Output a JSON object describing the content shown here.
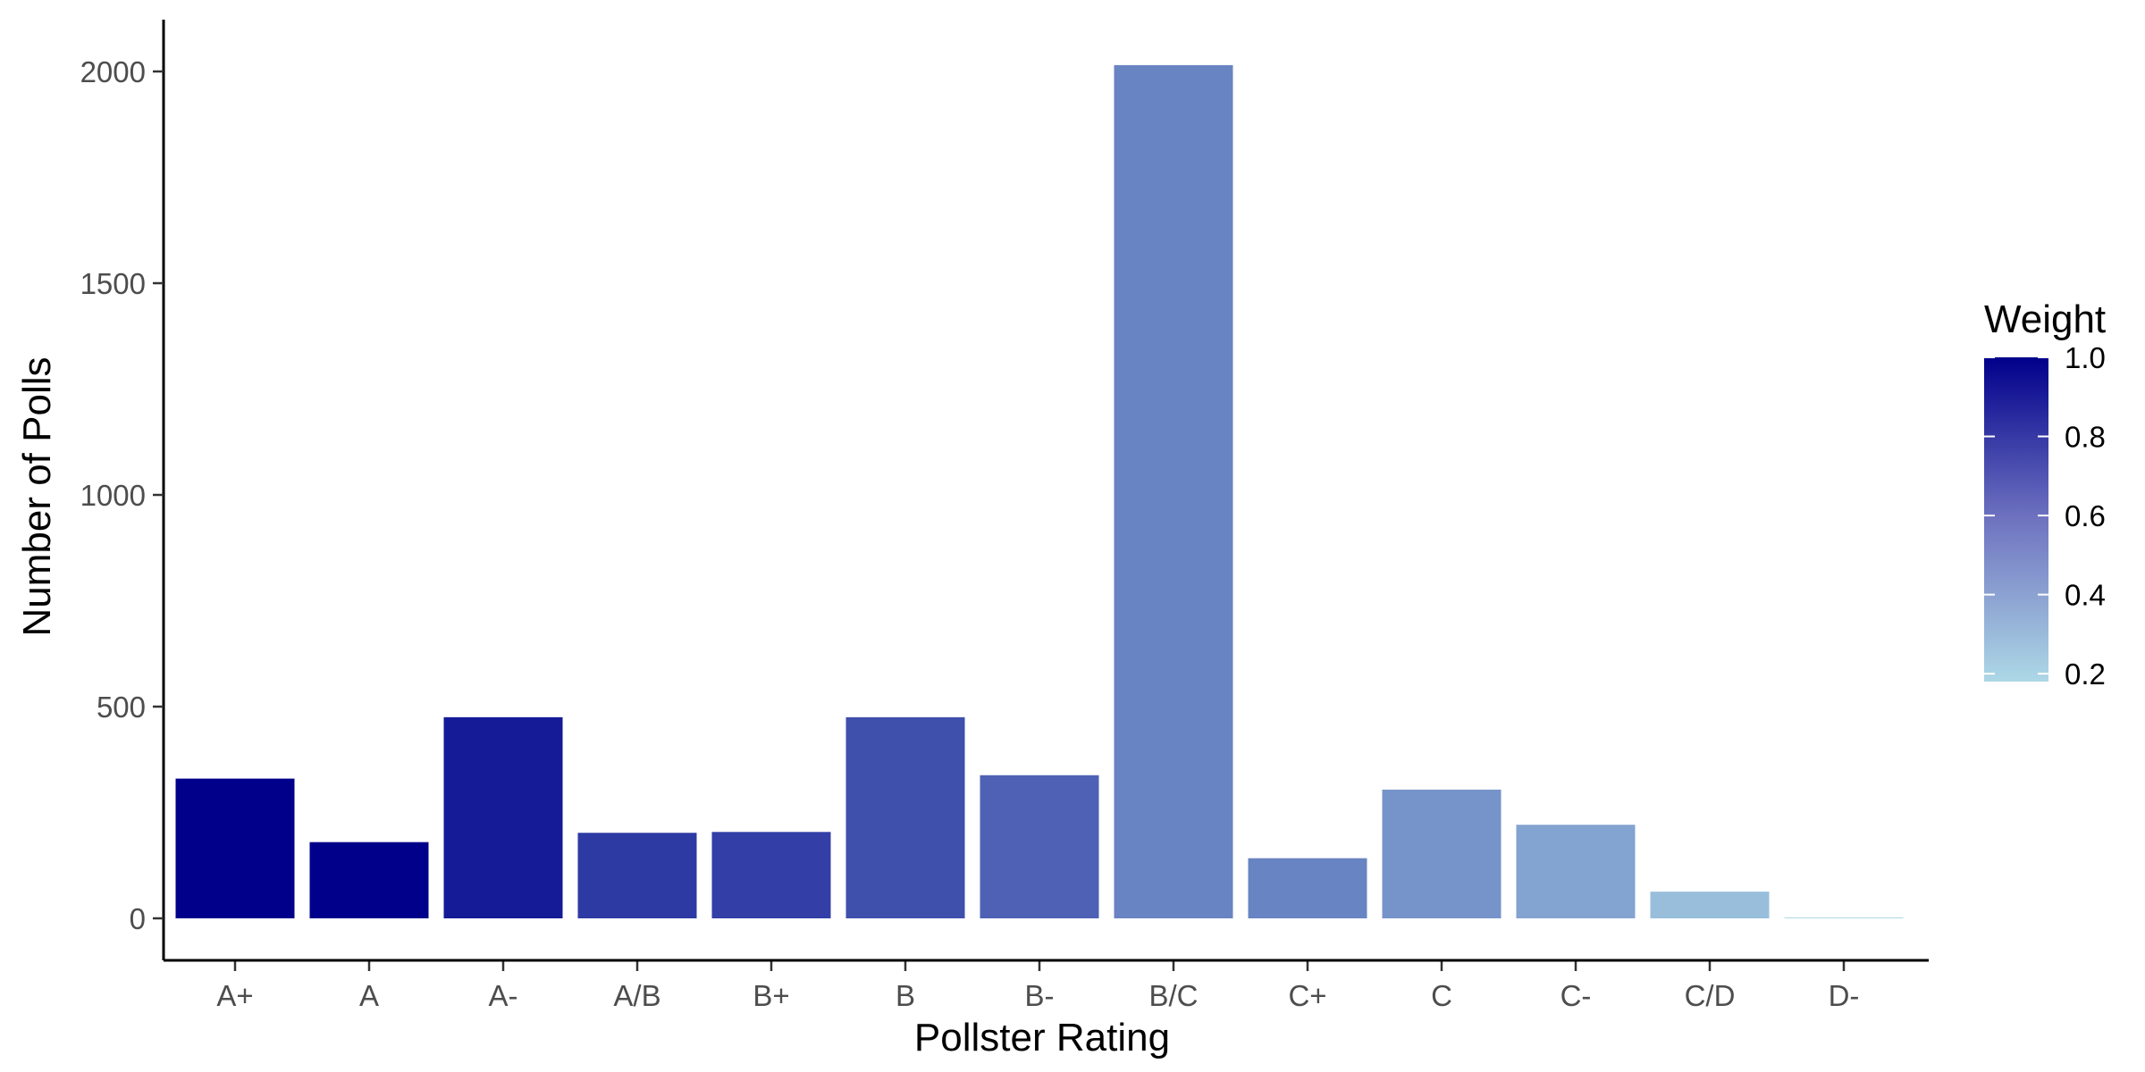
{
  "chart_data": {
    "type": "bar",
    "categories": [
      "A+",
      "A",
      "A-",
      "A/B",
      "B+",
      "B",
      "B-",
      "B/C",
      "C+",
      "C",
      "C-",
      "C/D",
      "D-"
    ],
    "values": [
      330,
      180,
      475,
      202,
      204,
      475,
      338,
      2015,
      142,
      304,
      221,
      63,
      2
    ],
    "weights": [
      1.0,
      1.0,
      0.9,
      0.78,
      0.76,
      0.7,
      0.63,
      0.5,
      0.5,
      0.44,
      0.38,
      0.28,
      0.15
    ],
    "xlabel": "Pollster Rating",
    "ylabel": "Number of Polls",
    "ylim": [
      0,
      2100
    ],
    "yticks": [
      0,
      500,
      1000,
      1500,
      2000
    ],
    "grid": false,
    "legend": {
      "title": "Weight",
      "placement": "right",
      "ticks": [
        0.2,
        0.4,
        0.6,
        0.8,
        1.0
      ],
      "tick_labels": [
        "0.2",
        "0.4",
        "0.6",
        "0.8",
        "1.0"
      ],
      "range": [
        0.18,
        1.0
      ],
      "color_low": "#add8e6",
      "color_high": "#00008b"
    }
  }
}
